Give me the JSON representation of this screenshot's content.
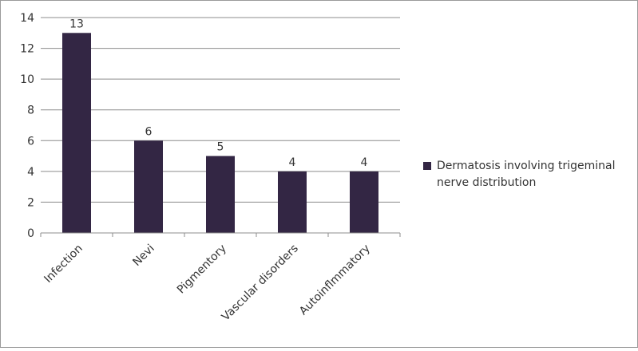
{
  "chart_data": {
    "type": "bar",
    "categories": [
      "Infection",
      "Nevi",
      "Pigmentory",
      "Vascular disorders",
      "Autoinflmmatory"
    ],
    "series": [
      {
        "name": "Dermatosis involving trigeminal nerve distribution",
        "values": [
          13,
          6,
          5,
          4,
          4
        ],
        "color": "#332644"
      }
    ],
    "data_labels": [
      "13",
      "6",
      "5",
      "4",
      "4"
    ],
    "ylim": [
      0,
      14
    ],
    "yticks": [
      0,
      2,
      4,
      6,
      8,
      10,
      12,
      14
    ],
    "grid": true,
    "legend_position": "right"
  }
}
